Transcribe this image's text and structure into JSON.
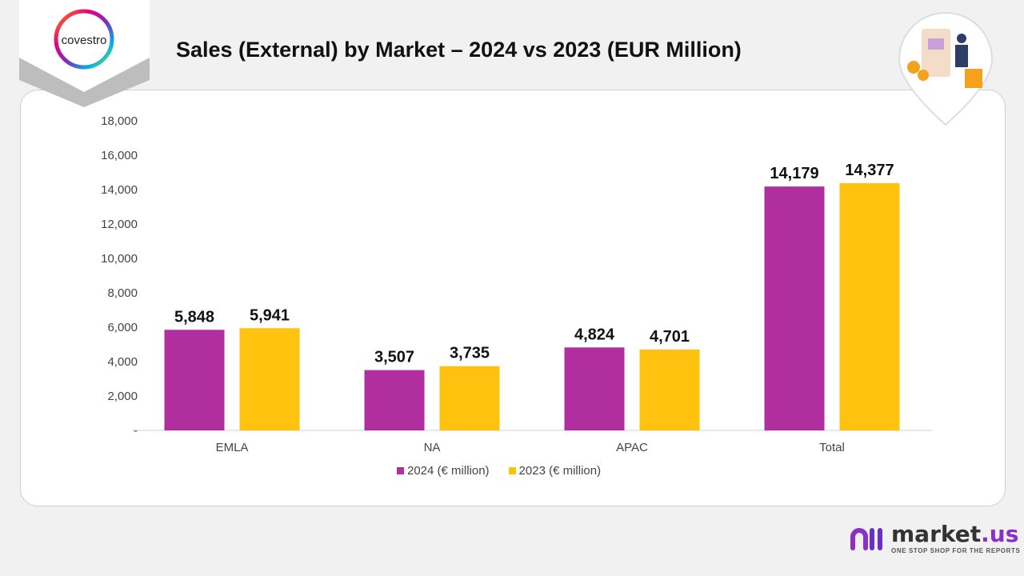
{
  "header": {
    "title": "Sales (External) by Market – 2024 vs 2023 (EUR Million)",
    "logo_text": "covestro"
  },
  "brand": {
    "name": "market",
    "name_suffix": ".us",
    "tagline": "ONE STOP SHOP FOR THE REPORTS"
  },
  "colors": {
    "s2024": "#b02e9e",
    "s2023": "#ffc20e"
  },
  "chart_data": {
    "type": "bar",
    "title": "Sales (External) by Market – 2024 vs 2023 (EUR Million)",
    "categories": [
      "EMLA",
      "NA",
      "APAC",
      "Total"
    ],
    "series": [
      {
        "name": "2024 (€ million)",
        "values": [
          5848,
          3507,
          4824,
          14179
        ]
      },
      {
        "name": "2023 (€ million)",
        "values": [
          5941,
          3735,
          4701,
          14377
        ]
      }
    ],
    "data_labels": [
      [
        "5,848",
        "3,507",
        "4,824",
        "14,179"
      ],
      [
        "5,941",
        "3,735",
        "4,701",
        "14,377"
      ]
    ],
    "yticks": [
      "-",
      "2,000",
      "4,000",
      "6,000",
      "8,000",
      "10,000",
      "12,000",
      "14,000",
      "16,000",
      "18,000"
    ],
    "ylim": [
      0,
      18000
    ],
    "legend": "bottom",
    "grid": false
  }
}
